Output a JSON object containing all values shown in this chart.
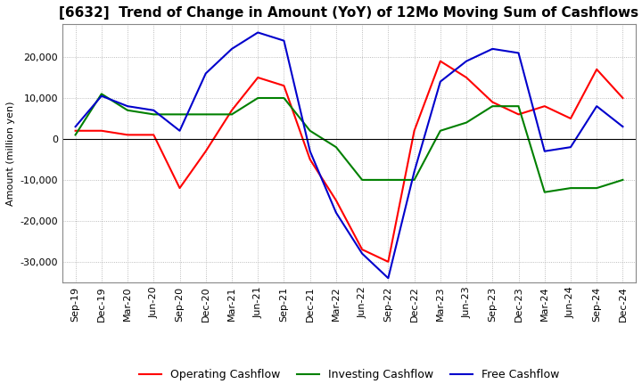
{
  "title": "[6632]  Trend of Change in Amount (YoY) of 12Mo Moving Sum of Cashflows",
  "ylabel": "Amount (million yen)",
  "ylim": [
    -35000,
    28000
  ],
  "yticks": [
    -30000,
    -20000,
    -10000,
    0,
    10000,
    20000
  ],
  "labels": [
    "Sep-19",
    "Dec-19",
    "Mar-20",
    "Jun-20",
    "Sep-20",
    "Dec-20",
    "Mar-21",
    "Jun-21",
    "Sep-21",
    "Dec-21",
    "Mar-22",
    "Jun-22",
    "Sep-22",
    "Dec-22",
    "Mar-23",
    "Jun-23",
    "Sep-23",
    "Dec-23",
    "Mar-24",
    "Jun-24",
    "Sep-24",
    "Dec-24"
  ],
  "operating": [
    2000,
    2000,
    1000,
    1000,
    -12000,
    -3000,
    7000,
    15000,
    13000,
    -5000,
    -15000,
    -27000,
    -30000,
    2000,
    19000,
    15000,
    9000,
    6000,
    8000,
    5000,
    17000,
    10000
  ],
  "investing": [
    1000,
    11000,
    7000,
    6000,
    6000,
    6000,
    6000,
    10000,
    10000,
    2000,
    -2000,
    -10000,
    -10000,
    -10000,
    2000,
    4000,
    8000,
    8000,
    -13000,
    -12000,
    -12000,
    -10000
  ],
  "free": [
    3000,
    10500,
    8000,
    7000,
    2000,
    16000,
    22000,
    26000,
    24000,
    -3000,
    -18000,
    -28000,
    -34000,
    -8000,
    14000,
    19000,
    22000,
    21000,
    -3000,
    -2000,
    8000,
    3000
  ],
  "operating_color": "#ff0000",
  "investing_color": "#008000",
  "free_color": "#0000cc",
  "background_color": "#ffffff",
  "grid_color": "#aaaaaa",
  "title_fontsize": 11,
  "axis_fontsize": 8,
  "legend_fontsize": 9
}
